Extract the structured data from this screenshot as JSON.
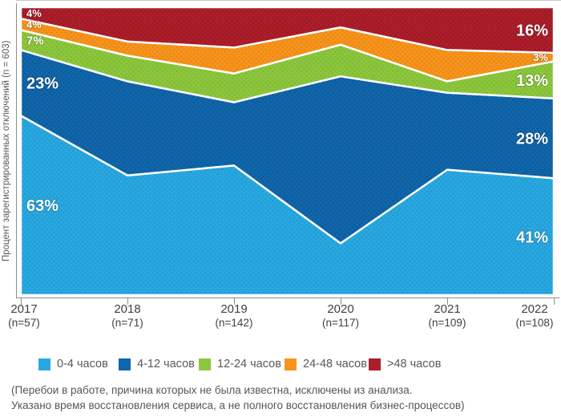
{
  "y_axis_label": "Процент зарегистрированных отключений (n = 603)",
  "chart_data": {
    "type": "area",
    "stacked": true,
    "normalized_percent": true,
    "title": "",
    "xlabel": "",
    "ylabel": "Процент зарегистрированных отключений (n = 603)",
    "ylim": [
      0,
      100
    ],
    "grid": false,
    "legend_position": "bottom",
    "x_categories": [
      "2017",
      "2018",
      "2019",
      "2020",
      "2021",
      "2022"
    ],
    "x_sublabels": [
      "(n=57)",
      "(n=71)",
      "(n=142)",
      "(n=117)",
      "(n=109)",
      "(n=108)"
    ],
    "series": [
      {
        "name": "0-4 часов",
        "color": "#29A8E0",
        "dot_color": "#1E93CA",
        "values": [
          63,
          42,
          45,
          18,
          44,
          41
        ]
      },
      {
        "name": "4-12 часов",
        "color": "#1066AA",
        "dot_color": "#0B538F",
        "values": [
          23,
          33,
          22,
          58,
          27,
          28
        ]
      },
      {
        "name": "12-24 часов",
        "color": "#8CC63D",
        "dot_color": "#7AB32C",
        "values": [
          7,
          9,
          10,
          11,
          4,
          13
        ]
      },
      {
        "name": "24-48 часов",
        "color": "#F7941D",
        "dot_color": "#E07F0E",
        "values": [
          4,
          5,
          9,
          6,
          11,
          3
        ]
      },
      {
        "name": ">48 часов",
        "color": "#AC1E2A",
        "dot_color": "#92141F",
        "values": [
          4,
          12,
          14,
          7,
          15,
          16
        ]
      }
    ],
    "visible_value_labels": {
      "2017": [
        "63%",
        "23%",
        "7%",
        "4%",
        "4%"
      ],
      "2022": [
        "41%",
        "28%",
        "13%",
        "3%",
        "16%"
      ]
    }
  },
  "legend": {
    "items": [
      "0-4 часов",
      "4-12 часов",
      "12-24 часов",
      "24-48 часов",
      ">48 часов"
    ]
  },
  "footnote": {
    "line1": "(Перебои в работе, причина которых не была известна, исключены из анализа.",
    "line2": "Указано время восстановления сервиса, а не полного восстановления бизнес-процессов)"
  }
}
